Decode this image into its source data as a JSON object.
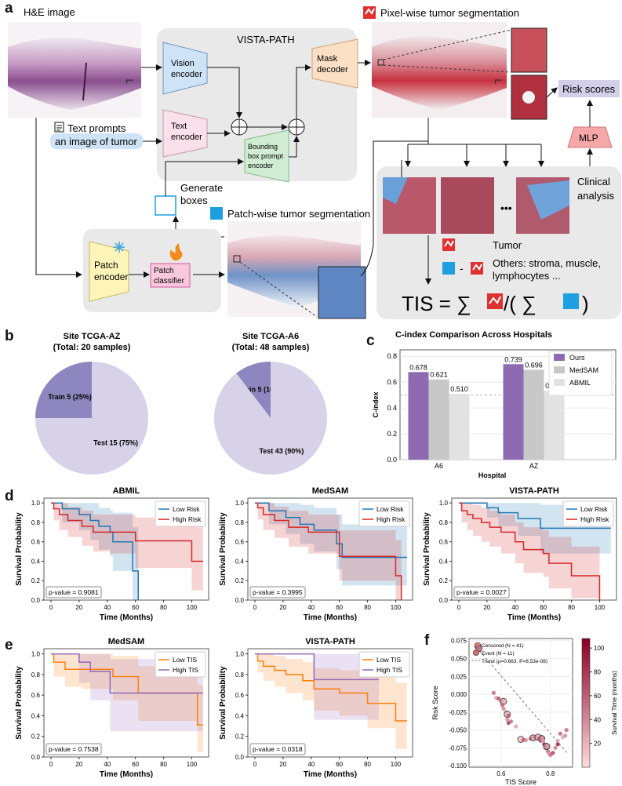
{
  "panel_a": {
    "label": "a",
    "he_image": "H&E image",
    "vista_path": "VISTA-PATH",
    "vision_encoder": [
      "Vision",
      "encoder"
    ],
    "text_encoder": [
      "Text",
      "encoder"
    ],
    "mask_decoder": [
      "Mask",
      "decoder"
    ],
    "bbox_encoder": [
      "Bounding",
      "box prompt",
      "encoder"
    ],
    "text_prompts": "Text prompts",
    "prompt_example": "an image of tumor",
    "pixel_seg": "Pixel-wise tumor segmentation",
    "risk_scores": "Risk scores",
    "mlp": "MLP",
    "clinical_analysis": [
      "Clinical",
      "analysis"
    ],
    "generate_boxes": [
      "Generate",
      "boxes"
    ],
    "patch_seg": "Patch-wise tumor segmentation",
    "patch_encoder": [
      "Patch",
      "encoder"
    ],
    "patch_classifier": [
      "Patch",
      "classifier"
    ],
    "ellipsis": "•••",
    "tumor": "Tumor",
    "others": [
      "Others: stroma, muscle,",
      "lymphocytes ..."
    ],
    "minus": "-",
    "tis_formula": {
      "lhs": "TIS = ∑",
      "mid": "/( ∑",
      "rhs": ")"
    }
  },
  "panel_b": {
    "label": "b",
    "charts": [
      {
        "title": "Site TCGA-AZ",
        "subtitle": "(Total: 20 samples)",
        "slices": [
          {
            "name": "Train",
            "value": 5,
            "label": "Train 5 (25%)",
            "color": "#8e87bf"
          },
          {
            "name": "Test",
            "value": 15,
            "label": "Test 15 (75%)",
            "color": "#d8d2e8"
          }
        ]
      },
      {
        "title": "Site TCGA-A6",
        "subtitle": "(Total: 48 samples)",
        "slices": [
          {
            "name": "Train",
            "value": 5,
            "label": "Train 5 (10%)",
            "color": "#8e87bf"
          },
          {
            "name": "Test",
            "value": 43,
            "label": "Test 43 (90%)",
            "color": "#d8d2e8"
          }
        ]
      }
    ]
  },
  "panel_c": {
    "label": "c"
  },
  "panel_d": {
    "label": "d"
  },
  "panel_e": {
    "label": "e"
  },
  "panel_f": {
    "label": "f"
  },
  "chart_data": [
    {
      "type": "bar",
      "title": "C-index Comparison Across Hospitals",
      "xlabel": "Hospital",
      "ylabel": "C-index",
      "categories": [
        "A6",
        "AZ"
      ],
      "ylim": [
        0,
        0.85
      ],
      "yticks": [
        0.0,
        0.2,
        0.4,
        0.6,
        0.8
      ],
      "grid": "y",
      "legend_position": "top-right",
      "reference_line": 0.5,
      "series": [
        {
          "name": "Ours",
          "values": [
            0.678,
            0.739
          ],
          "labels": [
            "0.678",
            "0.739"
          ],
          "color": "#8e6bb1"
        },
        {
          "name": "MedSAM",
          "values": [
            0.621,
            0.696
          ],
          "labels": [
            "0.621",
            "0.696"
          ],
          "color": "#c8c8c8"
        },
        {
          "name": "ABMIL",
          "values": [
            0.51,
            0.533
          ],
          "labels": [
            "0.510",
            "0.533"
          ],
          "color": "#e2e2e2"
        }
      ]
    },
    {
      "type": "line",
      "title": "ABMIL",
      "xlabel": "Time (Months)",
      "ylabel": "Survival Probability",
      "xlim": [
        -5,
        112
      ],
      "ylim": [
        0,
        1.05
      ],
      "xticks": [
        0,
        20,
        40,
        60,
        80,
        100
      ],
      "yticks": [
        0.0,
        0.2,
        0.4,
        0.6,
        0.8,
        1.0
      ],
      "legend_position": "top-right",
      "annotation": "p-value = 0.9081",
      "series": [
        {
          "name": "Low Risk",
          "color": "#1f77b4",
          "x": [
            0,
            8,
            20,
            28,
            34,
            42,
            44,
            58,
            62
          ],
          "y": [
            1.0,
            0.94,
            0.88,
            0.82,
            0.76,
            0.7,
            0.6,
            0.3,
            0.0
          ],
          "ci_lower": [
            1.0,
            0.8,
            0.72,
            0.62,
            0.52,
            0.45,
            0.3,
            0.0,
            0.0
          ],
          "ci_upper": [
            1.0,
            1.0,
            1.0,
            1.0,
            0.95,
            0.92,
            0.9,
            0.75,
            0.75
          ]
        },
        {
          "name": "High Risk",
          "color": "#d62728",
          "x": [
            0,
            2,
            6,
            12,
            22,
            30,
            42,
            60,
            100,
            108
          ],
          "y": [
            1.0,
            0.94,
            0.88,
            0.82,
            0.76,
            0.7,
            0.7,
            0.61,
            0.4,
            0.4
          ],
          "ci_lower": [
            1.0,
            0.82,
            0.72,
            0.65,
            0.56,
            0.5,
            0.48,
            0.33,
            0.1,
            0.1
          ],
          "ci_upper": [
            1.0,
            1.0,
            1.0,
            0.96,
            0.92,
            0.88,
            0.88,
            0.85,
            0.8,
            0.8
          ]
        }
      ]
    },
    {
      "type": "line",
      "title": "MedSAM",
      "xlabel": "Time (Months)",
      "ylabel": "Survival Probability",
      "xlim": [
        -5,
        112
      ],
      "ylim": [
        0,
        1.05
      ],
      "xticks": [
        0,
        20,
        40,
        60,
        80,
        100
      ],
      "yticks": [
        0.0,
        0.2,
        0.4,
        0.6,
        0.8,
        1.0
      ],
      "legend_position": "top-right",
      "annotation": "p-value = 0.3995",
      "series": [
        {
          "name": "Low Risk",
          "color": "#1f77b4",
          "x": [
            0,
            10,
            22,
            32,
            42,
            58,
            62,
            108
          ],
          "y": [
            1.0,
            0.92,
            0.85,
            0.78,
            0.72,
            0.58,
            0.44,
            0.44
          ],
          "ci_lower": [
            1.0,
            0.78,
            0.68,
            0.58,
            0.5,
            0.32,
            0.15,
            0.15
          ],
          "ci_upper": [
            1.0,
            1.0,
            1.0,
            0.98,
            0.95,
            0.88,
            0.78,
            0.78
          ]
        },
        {
          "name": "High Risk",
          "color": "#d62728",
          "x": [
            0,
            2,
            6,
            14,
            24,
            38,
            60,
            100,
            104
          ],
          "y": [
            1.0,
            0.95,
            0.88,
            0.82,
            0.75,
            0.7,
            0.45,
            0.25,
            0.0
          ],
          "ci_lower": [
            1.0,
            0.83,
            0.72,
            0.64,
            0.55,
            0.48,
            0.2,
            0.0,
            0.0
          ],
          "ci_upper": [
            1.0,
            1.0,
            1.0,
            0.96,
            0.92,
            0.88,
            0.72,
            0.62,
            0.62
          ]
        }
      ]
    },
    {
      "type": "line",
      "title": "VISTA-PATH",
      "xlabel": "Time (Months)",
      "ylabel": "Survival Probability",
      "xlim": [
        -5,
        112
      ],
      "ylim": [
        0,
        1.05
      ],
      "xticks": [
        0,
        20,
        40,
        60,
        80,
        100
      ],
      "yticks": [
        0.0,
        0.2,
        0.4,
        0.6,
        0.8,
        1.0
      ],
      "legend_position": "top-right",
      "annotation": "p-value = 0.0027",
      "series": [
        {
          "name": "Low Risk",
          "color": "#1f77b4",
          "x": [
            0,
            20,
            28,
            42,
            58,
            108
          ],
          "y": [
            1.0,
            0.95,
            0.9,
            0.84,
            0.74,
            0.74
          ],
          "ci_lower": [
            1.0,
            0.85,
            0.76,
            0.66,
            0.48,
            0.48
          ],
          "ci_upper": [
            1.0,
            1.0,
            1.0,
            1.0,
            0.98,
            0.98
          ]
        },
        {
          "name": "High Risk",
          "color": "#d62728",
          "x": [
            0,
            2,
            6,
            10,
            16,
            22,
            30,
            40,
            46,
            60,
            64,
            80,
            100
          ],
          "y": [
            1.0,
            0.92,
            0.88,
            0.84,
            0.8,
            0.75,
            0.7,
            0.6,
            0.52,
            0.48,
            0.38,
            0.25,
            0.0
          ],
          "ci_lower": [
            1.0,
            0.8,
            0.72,
            0.66,
            0.6,
            0.55,
            0.48,
            0.38,
            0.28,
            0.24,
            0.12,
            0.02,
            0.0
          ],
          "ci_upper": [
            1.0,
            1.0,
            1.0,
            0.98,
            0.95,
            0.92,
            0.88,
            0.8,
            0.75,
            0.72,
            0.65,
            0.55,
            0.55
          ]
        }
      ]
    },
    {
      "type": "line",
      "title": "MedSAM",
      "xlabel": "Time (Months)",
      "ylabel": "Survival Probability",
      "xlim": [
        -5,
        112
      ],
      "ylim": [
        0,
        1.05
      ],
      "xticks": [
        0,
        20,
        40,
        60,
        80,
        100
      ],
      "yticks": [
        0.0,
        0.2,
        0.4,
        0.6,
        0.8,
        1.0
      ],
      "legend_position": "top-right",
      "annotation": "p-value = 0.7538",
      "series": [
        {
          "name": "Low TIS",
          "color": "#ff7f0e",
          "x": [
            0,
            2,
            10,
            22,
            44,
            62,
            104,
            108
          ],
          "y": [
            1.0,
            0.92,
            0.85,
            0.85,
            0.78,
            0.62,
            0.31,
            0.31
          ],
          "ci_lower": [
            1.0,
            0.78,
            0.68,
            0.66,
            0.55,
            0.35,
            0.05,
            0.05
          ],
          "ci_upper": [
            1.0,
            1.0,
            1.0,
            1.0,
            0.98,
            0.88,
            0.7,
            0.7
          ]
        },
        {
          "name": "High TIS",
          "color": "#9467bd",
          "x": [
            0,
            20,
            28,
            42,
            108
          ],
          "y": [
            1.0,
            0.92,
            0.83,
            0.62,
            0.62
          ],
          "ci_lower": [
            1.0,
            0.72,
            0.55,
            0.25,
            0.25
          ],
          "ci_upper": [
            1.0,
            1.0,
            1.0,
            0.95,
            0.95
          ]
        }
      ]
    },
    {
      "type": "line",
      "title": "VISTA-PATH",
      "xlabel": "Time (Months)",
      "ylabel": "Survival Probability",
      "xlim": [
        -5,
        112
      ],
      "ylim": [
        0,
        1.05
      ],
      "xticks": [
        0,
        20,
        40,
        60,
        80,
        100
      ],
      "yticks": [
        0.0,
        0.2,
        0.4,
        0.6,
        0.8,
        1.0
      ],
      "legend_position": "top-right",
      "annotation": "p-value = 0.0318",
      "series": [
        {
          "name": "Low TIS",
          "color": "#ff7f0e",
          "x": [
            0,
            2,
            6,
            14,
            22,
            34,
            42,
            60,
            80,
            100,
            108
          ],
          "y": [
            1.0,
            0.93,
            0.88,
            0.84,
            0.8,
            0.74,
            0.66,
            0.62,
            0.52,
            0.35,
            0.35
          ],
          "ci_lower": [
            1.0,
            0.82,
            0.74,
            0.68,
            0.62,
            0.55,
            0.45,
            0.4,
            0.28,
            0.08,
            0.08
          ],
          "ci_upper": [
            1.0,
            1.0,
            1.0,
            0.98,
            0.95,
            0.92,
            0.86,
            0.84,
            0.78,
            0.72,
            0.72
          ]
        },
        {
          "name": "High TIS",
          "color": "#9467bd",
          "x": [
            0,
            42,
            88
          ],
          "y": [
            1.0,
            0.75,
            0.75
          ],
          "ci_lower": [
            1.0,
            0.36,
            0.36
          ],
          "ci_upper": [
            1.0,
            1.0,
            1.0
          ]
        }
      ]
    },
    {
      "type": "scatter",
      "xlabel": "TIS Score",
      "ylabel": "Risk Score",
      "xlim": [
        0.47,
        0.89
      ],
      "ylim": [
        -0.102,
        0.078
      ],
      "xticks": [
        0.6,
        0.8
      ],
      "yticks": [
        0.075,
        0.05,
        0.025,
        0.0,
        -0.025,
        -0.05,
        -0.075,
        -0.1
      ],
      "colorbar": {
        "label": "Survival Time (months)",
        "range": [
          0,
          108
        ],
        "ticks": [
          20,
          40,
          60,
          80,
          100
        ]
      },
      "legend_position": "top-left",
      "legend": [
        "Censored (N = 41)",
        "Event (N = 11)",
        "Trend (ρ=0.663, P=8.53e-08)"
      ],
      "trend": {
        "x": [
          0.5,
          0.87
        ],
        "y": [
          0.066,
          -0.083
        ]
      },
      "points": [
        {
          "x": 0.505,
          "y": 0.068,
          "t": 40,
          "event": true
        },
        {
          "x": 0.51,
          "y": 0.064,
          "t": 55,
          "event": true
        },
        {
          "x": 0.57,
          "y": 0.002,
          "t": 55,
          "event": false
        },
        {
          "x": 0.58,
          "y": -0.005,
          "t": 30,
          "event": false
        },
        {
          "x": 0.59,
          "y": -0.006,
          "t": 70,
          "event": false
        },
        {
          "x": 0.6,
          "y": -0.01,
          "t": 50,
          "event": false
        },
        {
          "x": 0.61,
          "y": -0.01,
          "t": 25,
          "event": true
        },
        {
          "x": 0.605,
          "y": -0.015,
          "t": 60,
          "event": false
        },
        {
          "x": 0.61,
          "y": -0.02,
          "t": 45,
          "event": false
        },
        {
          "x": 0.62,
          "y": -0.025,
          "t": 35,
          "event": false
        },
        {
          "x": 0.625,
          "y": -0.028,
          "t": 20,
          "event": true
        },
        {
          "x": 0.63,
          "y": -0.03,
          "t": 65,
          "event": false
        },
        {
          "x": 0.625,
          "y": -0.035,
          "t": 40,
          "event": false
        },
        {
          "x": 0.63,
          "y": -0.04,
          "t": 80,
          "event": false
        },
        {
          "x": 0.64,
          "y": -0.038,
          "t": 55,
          "event": false
        },
        {
          "x": 0.66,
          "y": -0.045,
          "t": 30,
          "event": false
        },
        {
          "x": 0.68,
          "y": -0.063,
          "t": 15,
          "event": true
        },
        {
          "x": 0.69,
          "y": -0.064,
          "t": 60,
          "event": false
        },
        {
          "x": 0.7,
          "y": -0.064,
          "t": 45,
          "event": false
        },
        {
          "x": 0.72,
          "y": -0.062,
          "t": 70,
          "event": false
        },
        {
          "x": 0.73,
          "y": -0.061,
          "t": 35,
          "event": true
        },
        {
          "x": 0.74,
          "y": -0.06,
          "t": 50,
          "event": false
        },
        {
          "x": 0.745,
          "y": -0.062,
          "t": 40,
          "event": false
        },
        {
          "x": 0.75,
          "y": -0.06,
          "t": 25,
          "event": true
        },
        {
          "x": 0.755,
          "y": -0.063,
          "t": 55,
          "event": false
        },
        {
          "x": 0.76,
          "y": -0.065,
          "t": 65,
          "event": false
        },
        {
          "x": 0.765,
          "y": -0.062,
          "t": 45,
          "event": true
        },
        {
          "x": 0.77,
          "y": -0.066,
          "t": 30,
          "event": false
        },
        {
          "x": 0.775,
          "y": -0.07,
          "t": 85,
          "event": false
        },
        {
          "x": 0.78,
          "y": -0.075,
          "t": 55,
          "event": false
        },
        {
          "x": 0.785,
          "y": -0.073,
          "t": 40,
          "event": true
        },
        {
          "x": 0.79,
          "y": -0.08,
          "t": 60,
          "event": false
        },
        {
          "x": 0.795,
          "y": -0.083,
          "t": 35,
          "event": false
        },
        {
          "x": 0.8,
          "y": -0.085,
          "t": 50,
          "event": false
        },
        {
          "x": 0.81,
          "y": -0.082,
          "t": 75,
          "event": false
        },
        {
          "x": 0.82,
          "y": -0.075,
          "t": 45,
          "event": false
        },
        {
          "x": 0.83,
          "y": -0.065,
          "t": 30,
          "event": false
        },
        {
          "x": 0.84,
          "y": -0.055,
          "t": 60,
          "event": false
        },
        {
          "x": 0.85,
          "y": -0.06,
          "t": 25,
          "event": false
        },
        {
          "x": 0.86,
          "y": -0.058,
          "t": 40,
          "event": false
        },
        {
          "x": 0.865,
          "y": -0.05,
          "t": 55,
          "event": false
        },
        {
          "x": 0.83,
          "y": -0.07,
          "t": 90,
          "event": false
        }
      ]
    }
  ]
}
